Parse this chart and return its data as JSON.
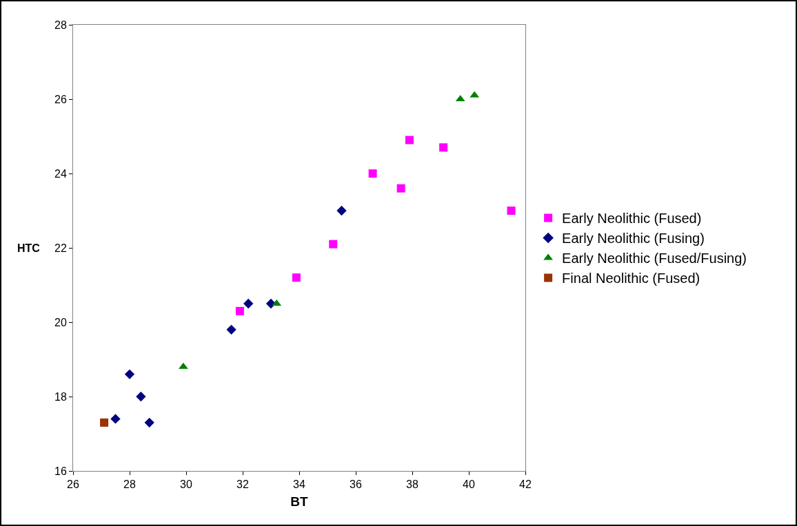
{
  "chart_data": {
    "type": "scatter",
    "xlabel": "BT",
    "ylabel": "HTC",
    "xlim": [
      26,
      42
    ],
    "xticks": [
      26,
      28,
      30,
      32,
      34,
      36,
      38,
      40,
      42
    ],
    "ylim": [
      16,
      28
    ],
    "yticks": [
      16,
      18,
      20,
      22,
      24,
      26,
      28
    ],
    "grid": false,
    "legend": "right",
    "series": [
      {
        "name": "Early Neolithic (Fused)",
        "color": "#ff00ff",
        "marker": "square",
        "x": [
          31.9,
          33.9,
          35.2,
          36.6,
          37.6,
          37.9,
          39.1,
          41.5
        ],
        "values": [
          20.3,
          21.2,
          22.1,
          24.0,
          23.6,
          24.9,
          24.7,
          23.0
        ]
      },
      {
        "name": "Early Neolithic (Fusing)",
        "color": "#000080",
        "marker": "diamond",
        "x": [
          27.5,
          28.0,
          28.4,
          28.7,
          31.6,
          32.2,
          33.0,
          35.5
        ],
        "values": [
          17.4,
          18.6,
          18.0,
          17.3,
          19.8,
          20.5,
          20.5,
          23.0
        ]
      },
      {
        "name": "Early Neolithic (Fused/Fusing)",
        "color": "#008000",
        "marker": "triangle",
        "x": [
          29.9,
          33.2,
          39.7,
          40.2
        ],
        "values": [
          18.8,
          20.5,
          26.0,
          26.1
        ]
      },
      {
        "name": "Final Neolithic (Fused)",
        "color": "#993300",
        "marker": "square",
        "x": [
          27.1
        ],
        "values": [
          17.3
        ]
      }
    ]
  }
}
